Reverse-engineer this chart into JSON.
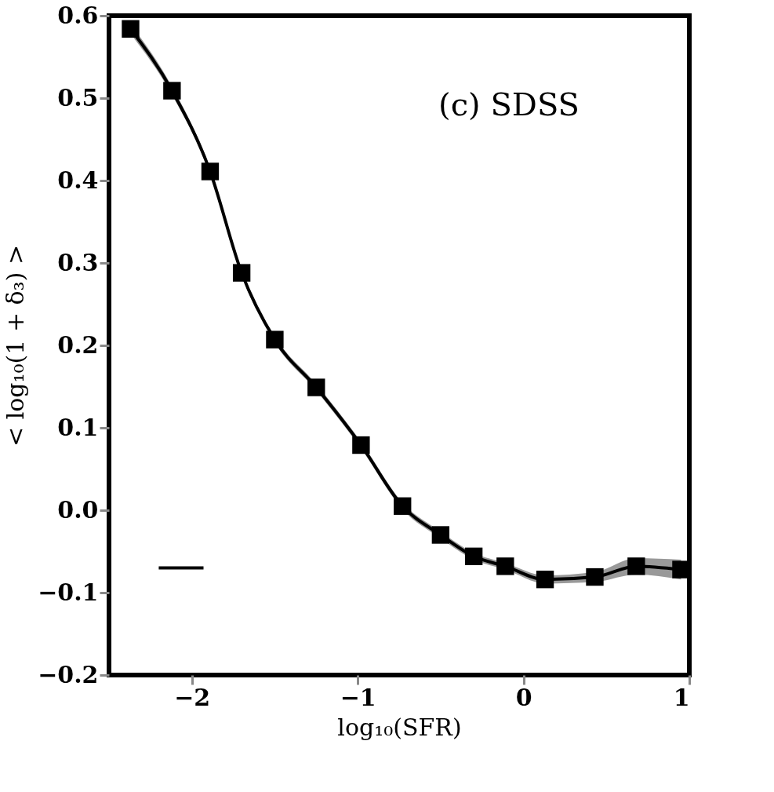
{
  "chart_data": {
    "type": "line",
    "xlabel": "log₁₀(SFR)",
    "ylabel": "< log₁₀(1 + δ₃) >",
    "annotations": [
      "(c) SDSS"
    ],
    "xlim": [
      -2.5,
      1.0
    ],
    "xticks": [
      -2,
      -1,
      0,
      1
    ],
    "ylim": [
      -0.2,
      0.6
    ],
    "yticks": [
      -0.2,
      -0.1,
      {
        "value": 0,
        "label": "0.0"
      },
      0.1,
      0.2,
      0.3,
      0.4,
      0.5,
      0.6
    ],
    "grid": false,
    "marker": "square",
    "line_style": "solid",
    "series": [
      {
        "color": "#000000",
        "x": [
          -2.37,
          -2.12,
          -1.89,
          -1.7,
          -1.5,
          -1.25,
          -0.98,
          -0.73,
          -0.5,
          -0.3,
          -0.11,
          0.13,
          0.43,
          0.68,
          0.95
        ],
        "values": [
          0.584,
          0.509,
          0.411,
          0.288,
          0.207,
          0.149,
          0.079,
          0.005,
          -0.03,
          -0.056,
          -0.068,
          -0.084,
          -0.081,
          -0.068,
          -0.072
        ],
        "lower": [
          0.578,
          0.504,
          0.407,
          0.284,
          0.203,
          0.145,
          0.075,
          0.001,
          -0.034,
          -0.06,
          -0.072,
          -0.089,
          -0.087,
          -0.078,
          -0.084
        ],
        "upper": [
          0.59,
          0.514,
          0.415,
          0.292,
          0.211,
          0.153,
          0.083,
          0.009,
          -0.026,
          -0.052,
          -0.064,
          -0.079,
          -0.075,
          -0.058,
          -0.06
        ]
      },
      {
        "type": "line",
        "marker": "none",
        "color": "#000000",
        "x": [
          -2.2,
          -1.93
        ],
        "values": [
          -0.07,
          -0.07
        ]
      }
    ]
  }
}
